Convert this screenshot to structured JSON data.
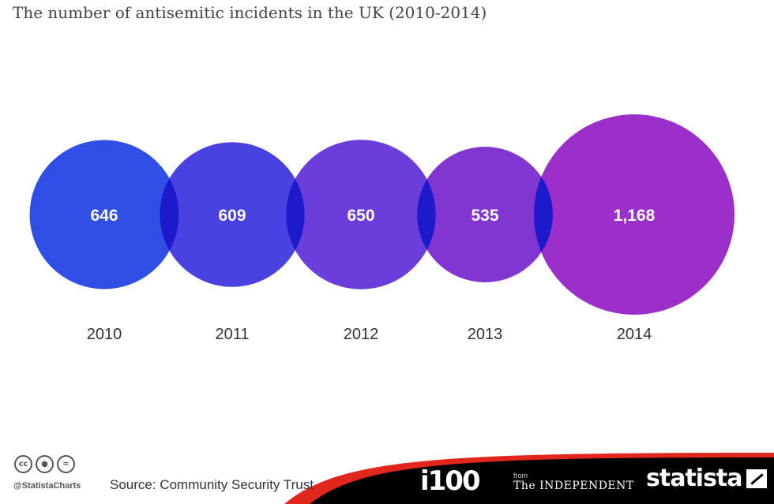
{
  "chart_data": {
    "type": "bubble",
    "title": "The number of antisemitic incidents in the UK (2010-2014)",
    "categories": [
      "2010",
      "2011",
      "2012",
      "2013",
      "2014"
    ],
    "values": [
      646,
      609,
      650,
      535,
      1168
    ],
    "value_labels": [
      "646",
      "609",
      "650",
      "535",
      "1,168"
    ],
    "colors": [
      "#2f4fe6",
      "#4a42e0",
      "#6b3ddb",
      "#8236d1",
      "#9c2ec9"
    ],
    "overlap_color": "#1d1acb",
    "grid": false
  },
  "footer": {
    "handle": "@StatistaCharts",
    "source": "Source: Community Security Trust",
    "cc_icons": [
      "cc-icon",
      "by-icon",
      "nd-icon"
    ],
    "brand_i100": "i100",
    "brand_from": "from",
    "brand_independent": "The INDEPENDENT",
    "brand_statista": "statista",
    "colors": {
      "band": "#000000",
      "accent": "#e0261d"
    }
  }
}
